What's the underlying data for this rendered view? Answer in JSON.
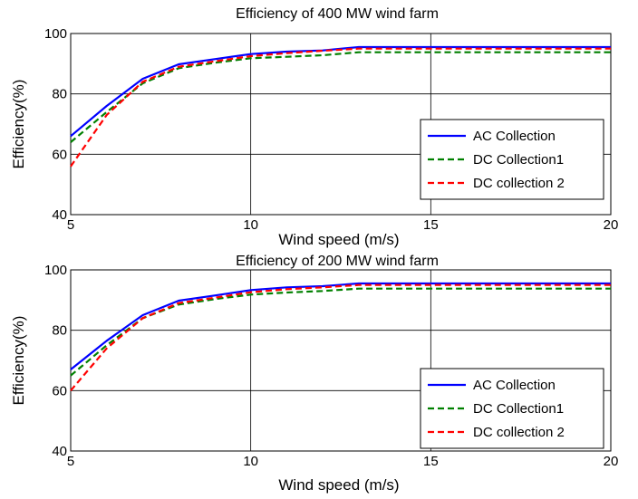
{
  "chart_data": [
    {
      "type": "line",
      "title": "Efficiency of 400 MW  wind farm",
      "xlabel": "Wind speed (m/s)",
      "ylabel": "Efficiency(%)",
      "xlim": [
        5,
        20
      ],
      "ylim": [
        40,
        100
      ],
      "xticks": [
        "5",
        "10",
        "15",
        "20"
      ],
      "yticks": [
        "40",
        "60",
        "80",
        "100"
      ],
      "grid": true,
      "legend_position": "lower-right",
      "x": [
        5,
        6,
        7,
        8,
        9,
        10,
        11,
        12,
        13,
        14,
        15,
        16,
        17,
        18,
        19,
        20
      ],
      "series": [
        {
          "name": "AC Collection",
          "color": "#0000ff",
          "dash": "solid",
          "values": [
            66,
            76,
            85,
            89.8,
            91.5,
            93.2,
            94,
            94.4,
            95.5,
            95.5,
            95.5,
            95.5,
            95.5,
            95.5,
            95.5,
            95.5
          ]
        },
        {
          "name": "DC Collection1",
          "color": "#008000",
          "dash": "dashed",
          "values": [
            64,
            74,
            83.5,
            88.5,
            90.3,
            91.8,
            92.3,
            92.8,
            93.8,
            93.8,
            93.8,
            93.8,
            93.8,
            93.8,
            93.8,
            93.8
          ]
        },
        {
          "name": "DC collection 2",
          "color": "#ff0000",
          "dash": "dashed",
          "values": [
            56,
            73,
            84,
            89,
            90.8,
            92.5,
            93.5,
            94.3,
            95,
            95,
            95,
            95,
            95,
            95,
            95,
            95
          ]
        }
      ]
    },
    {
      "type": "line",
      "title": "Efficiency of 200 MW wind farm",
      "xlabel": "Wind speed (m/s)",
      "ylabel": "Efficiency(%)",
      "xlim": [
        5,
        20
      ],
      "ylim": [
        40,
        100
      ],
      "xticks": [
        "5",
        "10",
        "15",
        "20"
      ],
      "yticks": [
        "40",
        "60",
        "80",
        "100"
      ],
      "grid": true,
      "legend_position": "lower-right",
      "x": [
        5,
        6,
        7,
        8,
        9,
        10,
        11,
        12,
        13,
        14,
        15,
        16,
        17,
        18,
        19,
        20
      ],
      "series": [
        {
          "name": "AC Collection",
          "color": "#0000ff",
          "dash": "solid",
          "values": [
            67,
            76.5,
            85,
            89.8,
            91.5,
            93.3,
            94.2,
            94.6,
            95.5,
            95.5,
            95.5,
            95.5,
            95.5,
            95.5,
            95.5,
            95.5
          ]
        },
        {
          "name": "DC Collection1",
          "color": "#008000",
          "dash": "dashed",
          "values": [
            65,
            75,
            84,
            88.5,
            90.3,
            91.8,
            92.5,
            93,
            93.8,
            93.8,
            93.8,
            93.8,
            93.8,
            93.8,
            93.8,
            93.8
          ]
        },
        {
          "name": "DC collection 2",
          "color": "#ff0000",
          "dash": "dashed",
          "values": [
            60,
            74,
            84,
            89,
            90.8,
            92.6,
            93.6,
            94.2,
            95,
            95,
            95,
            95,
            95,
            95,
            95,
            95
          ]
        }
      ]
    }
  ]
}
